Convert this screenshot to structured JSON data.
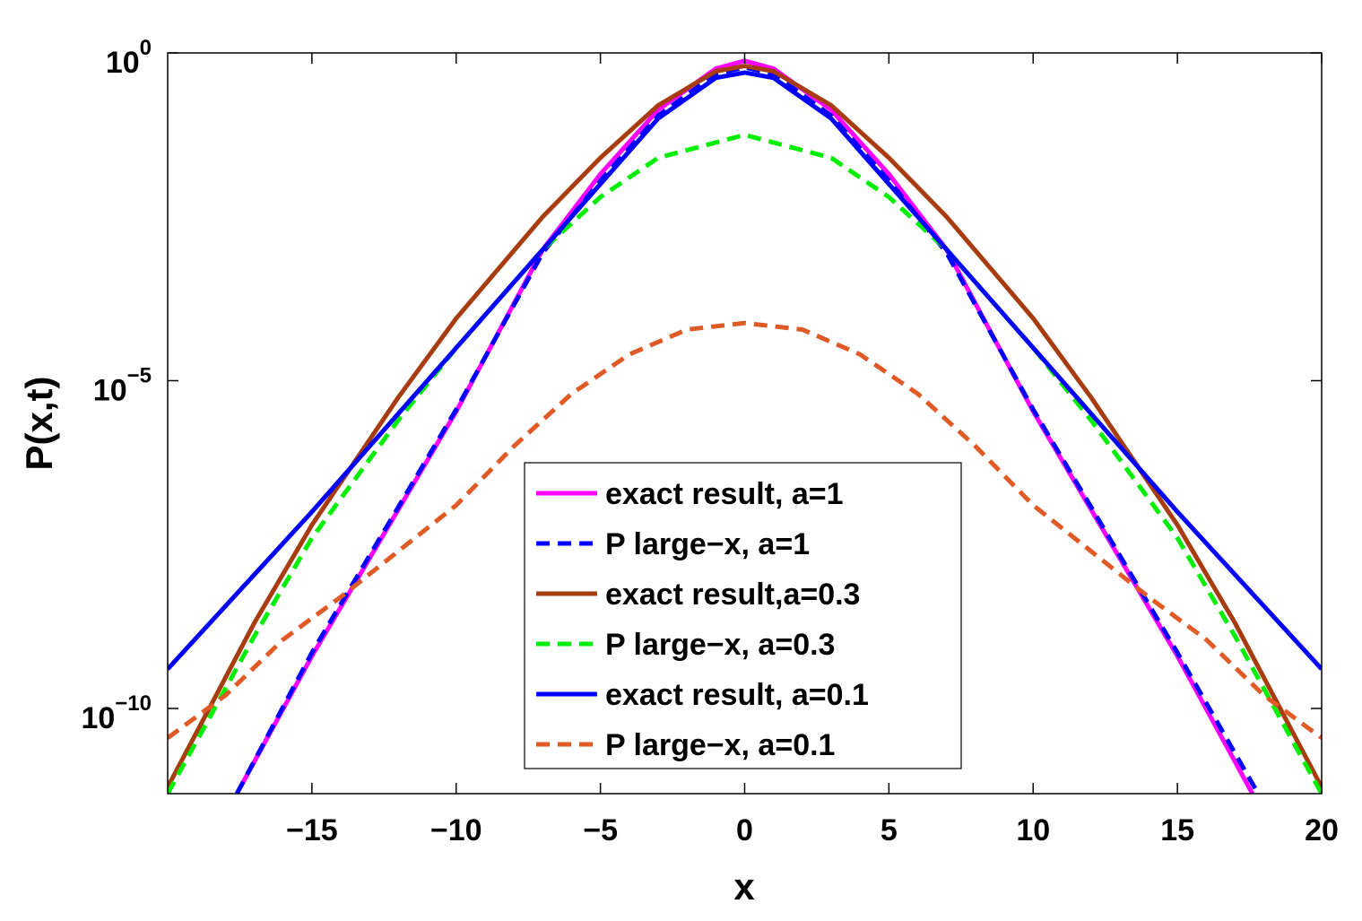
{
  "chart_data": {
    "type": "line",
    "title": "",
    "xlabel": "x",
    "ylabel": "P(x,t)",
    "xlim": [
      -20,
      20
    ],
    "ylim_log10": [
      -11.3,
      0
    ],
    "y_scale": "log",
    "x_ticks": [
      -15,
      -10,
      -5,
      0,
      5,
      10,
      15,
      20
    ],
    "x_tick_labels": [
      "−15",
      "−10",
      "−5",
      "0",
      "5",
      "10",
      "15",
      "20"
    ],
    "y_ticks": [
      {
        "exp": 0,
        "base": "10",
        "sup": "0"
      },
      {
        "exp": -5,
        "base": "10",
        "sup": "−5"
      },
      {
        "exp": -10,
        "base": "10",
        "sup": "−10"
      }
    ],
    "grid": false,
    "legend_position": "bottom-center",
    "series": [
      {
        "name": "exact result, a=1",
        "color": "#ff00ff",
        "dash": "solid",
        "x": [
          -17.6,
          -15,
          -10,
          -7,
          -5,
          -3,
          -1,
          0,
          1,
          3,
          5,
          7,
          10,
          15,
          17.6
        ],
        "log10_y": [
          -11.3,
          -9.2,
          -5.47,
          -3.0,
          -1.85,
          -0.87,
          -0.24,
          -0.12,
          -0.24,
          -0.87,
          -1.85,
          -3.0,
          -5.47,
          -9.2,
          -11.3
        ]
      },
      {
        "name": "P large−x, a=1",
        "color": "#0000ff",
        "dash": "dashed",
        "x": [
          -17.6,
          -15,
          -10,
          -7,
          -5,
          -3,
          -1,
          0,
          1,
          3,
          5,
          7,
          10,
          15,
          17.8
        ],
        "log10_y": [
          -11.3,
          -9.15,
          -5.44,
          -3.05,
          -1.95,
          -0.96,
          -0.32,
          -0.22,
          -0.32,
          -0.96,
          -1.95,
          -3.05,
          -5.44,
          -9.15,
          -11.3
        ]
      },
      {
        "name": "exact result,a=0.3",
        "color": "#a63c0f",
        "dash": "solid",
        "x": [
          -20,
          -17,
          -15,
          -12,
          -10,
          -7,
          -5,
          -3,
          -1,
          0,
          1,
          3,
          5,
          7,
          10,
          12,
          15,
          17,
          20
        ],
        "log10_y": [
          -11.2,
          -8.7,
          -7.2,
          -5.25,
          -4.05,
          -2.5,
          -1.6,
          -0.8,
          -0.28,
          -0.2,
          -0.28,
          -0.8,
          -1.6,
          -2.5,
          -4.05,
          -5.25,
          -7.2,
          -8.7,
          -11.2
        ]
      },
      {
        "name": "P large−x, a=0.3",
        "color": "#00ee00",
        "dash": "dashed",
        "x": [
          -20,
          -17,
          -15,
          -12,
          -10,
          -7,
          -5,
          -3,
          0,
          3,
          5,
          7,
          10,
          12,
          15,
          17,
          20
        ],
        "log10_y": [
          -11.3,
          -8.9,
          -7.4,
          -5.6,
          -4.5,
          -3.0,
          -2.2,
          -1.6,
          -1.25,
          -1.6,
          -2.2,
          -3.0,
          -4.5,
          -5.6,
          -7.4,
          -8.9,
          -11.3
        ]
      },
      {
        "name": "exact result, a=0.1",
        "color": "#0000ff",
        "dash": "solid",
        "x": [
          -20,
          -15,
          -10,
          -5,
          -3,
          -1,
          0,
          1,
          3,
          5,
          10,
          15,
          20
        ],
        "log10_y": [
          -9.4,
          -7.0,
          -4.5,
          -2.0,
          -1.0,
          -0.38,
          -0.3,
          -0.38,
          -1.0,
          -2.0,
          -4.5,
          -7.0,
          -9.4
        ]
      },
      {
        "name": "P large−x, a=0.1",
        "color": "#e05a26",
        "dash": "dashed",
        "x": [
          -20,
          -18,
          -16,
          -14,
          -12,
          -10,
          -8,
          -6,
          -4,
          -2,
          0,
          2,
          4,
          6,
          8,
          10,
          12,
          14,
          16,
          18,
          20
        ],
        "log10_y": [
          -10.45,
          -9.8,
          -8.95,
          -8.3,
          -7.6,
          -6.9,
          -6.0,
          -5.2,
          -4.6,
          -4.22,
          -4.12,
          -4.22,
          -4.6,
          -5.2,
          -6.0,
          -6.9,
          -7.6,
          -8.3,
          -8.95,
          -9.8,
          -10.45
        ]
      }
    ]
  }
}
